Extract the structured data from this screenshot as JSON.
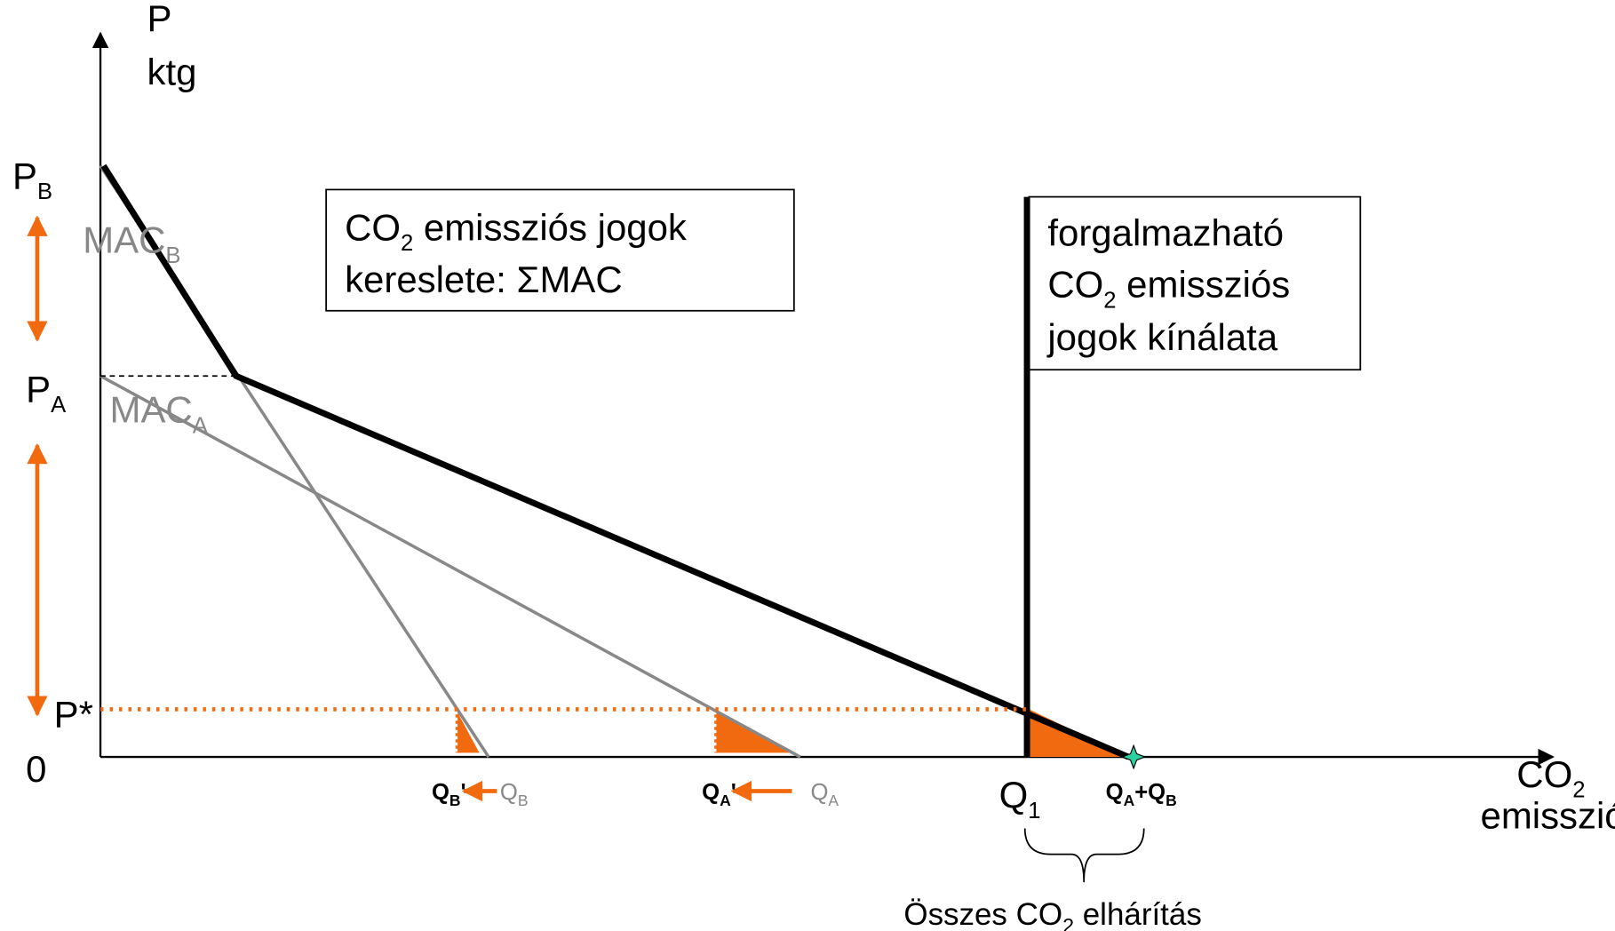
{
  "axes": {
    "y_label": "P",
    "y_unit": "ktg",
    "origin": "0",
    "x_label": {
      "main": "CO",
      "sub": "2"
    },
    "x_unit": "emisszió"
  },
  "prices": {
    "pb": {
      "main": "P",
      "sub": "B"
    },
    "pa": {
      "main": "P",
      "sub": "A"
    },
    "pstar": "P*"
  },
  "curves": {
    "mac_b": {
      "main": "MAC",
      "sub": "B"
    },
    "mac_a": {
      "main": "MAC",
      "sub": "A"
    }
  },
  "demand_box": {
    "line1": {
      "main": "CO",
      "sub": "2",
      "rest": " emissziós jogok"
    },
    "line2": "kereslete: ΣMAC"
  },
  "supply_box": {
    "line1": "forgalmazható",
    "line2": {
      "main": "CO",
      "sub": "2",
      "rest": " emissziós"
    },
    "line3": "jogok kínálata"
  },
  "quantities": {
    "qb_new": {
      "main": "Q",
      "sub": "B",
      "rest": "'"
    },
    "qb": {
      "main": "Q",
      "sub": "B"
    },
    "qa_new": {
      "main": "Q",
      "sub": "A",
      "rest": "'"
    },
    "qa": {
      "main": "Q",
      "sub": "A"
    },
    "q1": {
      "main": "Q",
      "sub": "1"
    },
    "qsum": {
      "a": "Q",
      "a_sub": "A",
      "plus": "+",
      "b": "Q",
      "b_sub": "B"
    }
  },
  "abatement": {
    "main": "Összes CO",
    "sub": "2",
    "rest": " elhárítás"
  }
}
